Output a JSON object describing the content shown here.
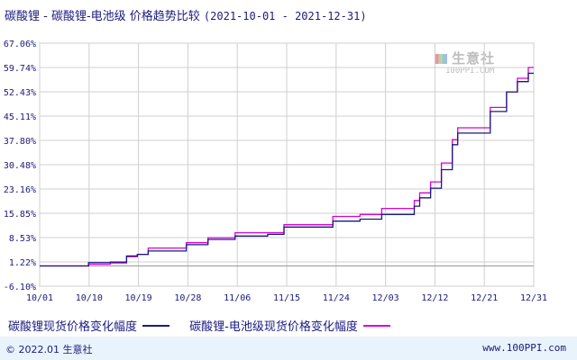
{
  "header": {
    "title": "碳酸锂 - 碳酸锂-电池级 价格趋势比较",
    "date_range": "(2021-10-01 - 2021-12-31)"
  },
  "watermark": {
    "name": "生意社",
    "url": "100PPI.COM"
  },
  "legend": [
    {
      "label": "碳酸锂现货价格变化幅度",
      "color": "#1a1a80"
    },
    {
      "label": "碳酸锂-电池级现货价格变化幅度",
      "color": "#d800d8"
    }
  ],
  "footer": {
    "left": "© 2022.01 生意社",
    "right": "www.100PPI.com"
  },
  "chart_data": {
    "type": "line",
    "title": "碳酸锂 - 碳酸锂-电池级 价格趋势比较",
    "x_ticks": [
      "10/01",
      "10/10",
      "10/19",
      "10/28",
      "11/06",
      "11/15",
      "11/24",
      "12/03",
      "12/12",
      "12/21",
      "12/31"
    ],
    "y_ticks": [
      "67.06%",
      "59.74%",
      "52.43%",
      "45.11%",
      "37.80%",
      "30.48%",
      "23.16%",
      "15.85%",
      "8.53%",
      "1.22%",
      "-6.10%"
    ],
    "ylim": [
      -6.1,
      67.06
    ],
    "grid": true,
    "legend_position": "bottom",
    "x": [
      "10/01",
      "10/08",
      "10/10",
      "10/14",
      "10/17",
      "10/19",
      "10/21",
      "10/28",
      "11/01",
      "11/06",
      "11/12",
      "11/15",
      "11/22",
      "11/24",
      "11/29",
      "12/03",
      "12/06",
      "12/09",
      "12/10",
      "12/12",
      "12/14",
      "12/16",
      "12/17",
      "12/21",
      "12/23",
      "12/26",
      "12/28",
      "12/30",
      "12/31"
    ],
    "series": [
      {
        "name": "碳酸锂现货价格变化幅度",
        "color": "#1a1a80",
        "values": [
          0.0,
          0.0,
          1.0,
          1.2,
          3.0,
          3.5,
          4.5,
          6.4,
          8.0,
          9.0,
          9.5,
          11.7,
          11.7,
          13.5,
          14.1,
          15.5,
          15.5,
          18.0,
          20.5,
          23.4,
          29.0,
          36.5,
          40.0,
          40.0,
          46.5,
          52.4,
          55.5,
          58.0,
          58.0
        ]
      },
      {
        "name": "碳酸锂-电池级现货价格变化幅度",
        "color": "#d800d8",
        "values": [
          0.0,
          0.0,
          0.5,
          0.9,
          2.8,
          3.5,
          5.4,
          7.0,
          8.5,
          10.0,
          10.0,
          12.4,
          12.4,
          14.9,
          15.5,
          17.3,
          17.3,
          19.7,
          22.0,
          25.3,
          31.0,
          38.0,
          41.6,
          41.6,
          47.7,
          52.4,
          56.5,
          59.74,
          59.74
        ]
      }
    ]
  }
}
